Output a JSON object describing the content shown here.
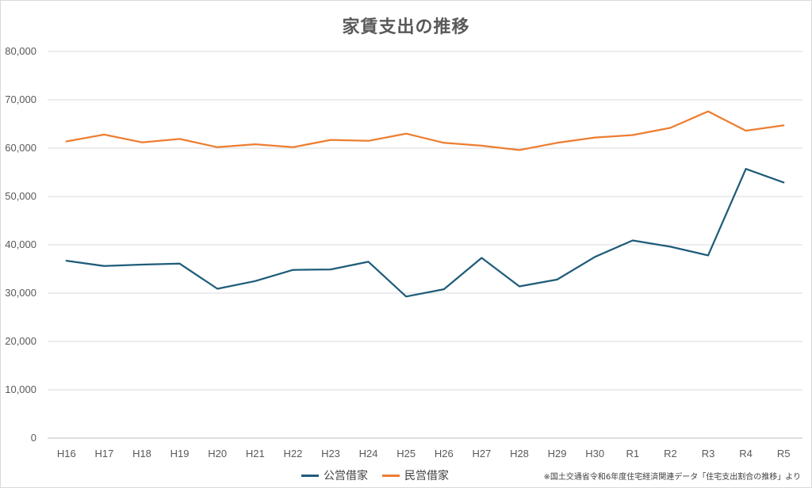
{
  "chart_data": {
    "type": "line",
    "title": "家賃支出の推移",
    "categories": [
      "H16",
      "H17",
      "H18",
      "H19",
      "H20",
      "H21",
      "H22",
      "H23",
      "H24",
      "H25",
      "H26",
      "H27",
      "H28",
      "H29",
      "H30",
      "R1",
      "R2",
      "R3",
      "R4",
      "R5"
    ],
    "series": [
      {
        "name": "公営借家",
        "color": "#1f5c7a",
        "values": [
          36700,
          35600,
          35900,
          36100,
          30900,
          32500,
          34800,
          34900,
          36500,
          29300,
          30800,
          37300,
          31400,
          32800,
          37500,
          40900,
          39600,
          37800,
          55700,
          52900
        ]
      },
      {
        "name": "民営借家",
        "color": "#ed7d31",
        "values": [
          61400,
          62800,
          61200,
          61900,
          60200,
          60800,
          60200,
          61700,
          61500,
          63000,
          61100,
          60500,
          59600,
          61100,
          62200,
          62700,
          64200,
          67600,
          63600,
          64700
        ]
      }
    ],
    "ylim": [
      0,
      80000
    ],
    "yticks": [
      "0",
      "10,000",
      "20,000",
      "30,000",
      "40,000",
      "50,000",
      "60,000",
      "70,000",
      "80,000"
    ],
    "grid": true,
    "legend_position": "bottom"
  },
  "source_note": "※国土交通省令和6年度住宅経済関連データ「住宅支出割合の推移」より"
}
